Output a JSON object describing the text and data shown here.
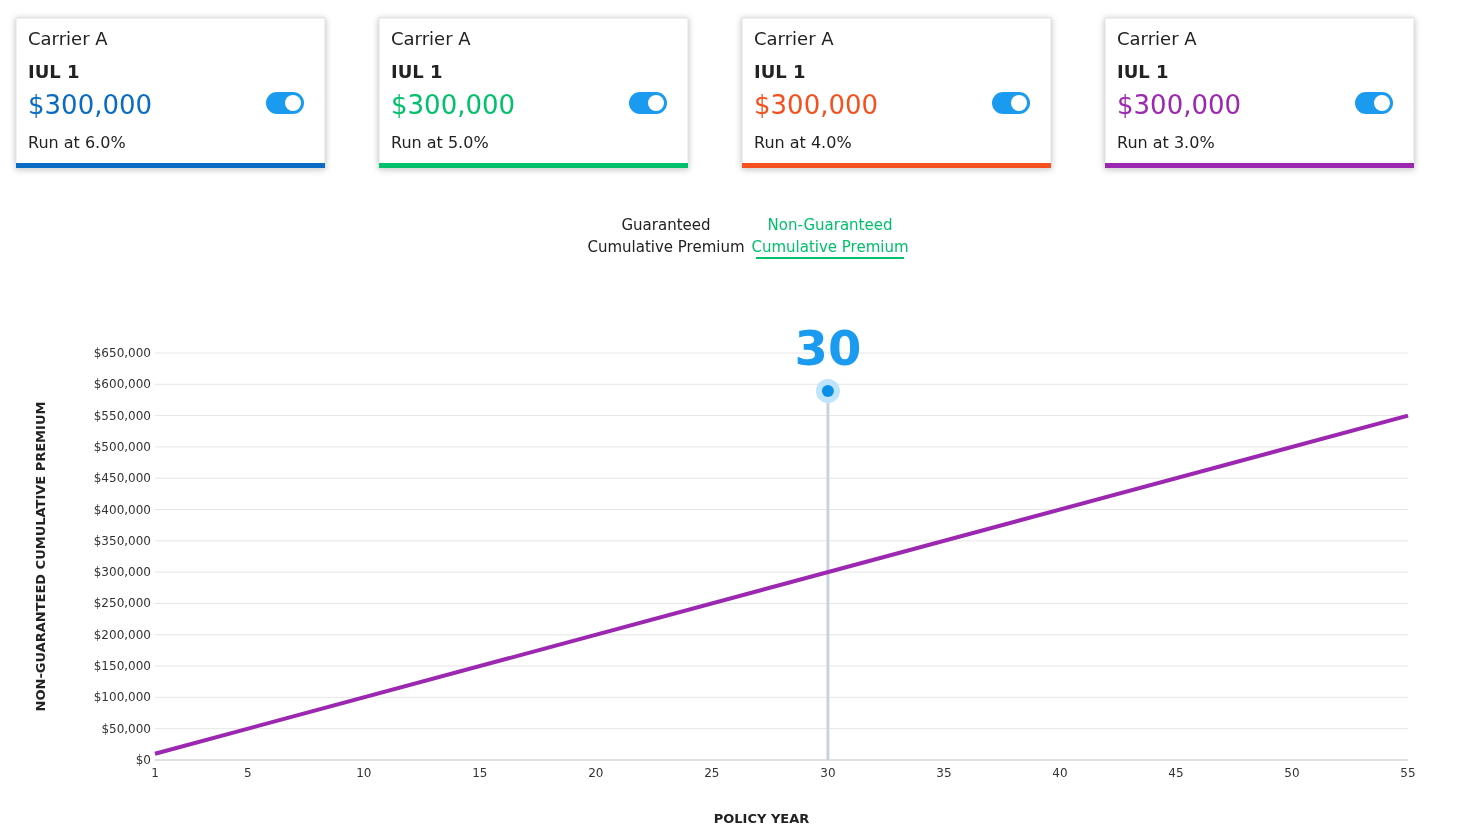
{
  "chart_data": [
    {
      "type": "other",
      "colors": [
        "#0a6bc4",
        "#00c06b",
        "#f4511e",
        "#9c27b0"
      ],
      "annotations": [
        "Carrier A",
        "IUL 1",
        "$300,000",
        "Run at 6.0%",
        "Carrier A",
        "IUL 1",
        "$300,000",
        "Run at 5.0%",
        "Carrier A",
        "IUL 1",
        "$300,000",
        "Run at 4.0%",
        "Carrier A",
        "IUL 1",
        "$300,000",
        "Run at 3.0%",
        "Guaranteed\nCumulative Premium",
        "Non-Guaranteed\nCumulative Premium"
      ]
    },
    {
      "type": "line",
      "x": [
        1,
        55
      ],
      "series": [
        {
          "color": "#9c27b0",
          "values": [
            10000,
            550000
          ]
        }
      ],
      "xlim": [
        1,
        55
      ],
      "xticks": [
        1,
        5,
        10,
        15,
        20,
        25,
        30,
        35,
        40,
        45,
        50,
        55
      ],
      "ylim": [
        0,
        650000
      ],
      "yticks": [
        {
          "value": 0,
          "label": "$0"
        },
        {
          "value": 50000,
          "label": "$50,000"
        },
        {
          "value": 100000,
          "label": "$100,000"
        },
        {
          "value": 150000,
          "label": "$150,000"
        },
        {
          "value": 200000,
          "label": "$200,000"
        },
        {
          "value": 250000,
          "label": "$250,000"
        },
        {
          "value": 300000,
          "label": "$300,000"
        },
        {
          "value": 350000,
          "label": "$350,000"
        },
        {
          "value": 400000,
          "label": "$400,000"
        },
        {
          "value": 450000,
          "label": "$450,000"
        },
        {
          "value": 500000,
          "label": "$500,000"
        },
        {
          "value": 550000,
          "label": "$550,000"
        },
        {
          "value": 600000,
          "label": "$600,000"
        },
        {
          "value": 650000,
          "label": "$650,000"
        }
      ],
      "grid": "y",
      "marker": "none",
      "line_style": "solid",
      "xlabel": "POLICY YEAR",
      "ylabel": "NON-GUARANTEED CUMULATIVE PREMIUM",
      "ref_lines": [
        {
          "axis": "x",
          "value": 30,
          "label": "30",
          "color": "#c9d3e0"
        }
      ]
    }
  ]
}
